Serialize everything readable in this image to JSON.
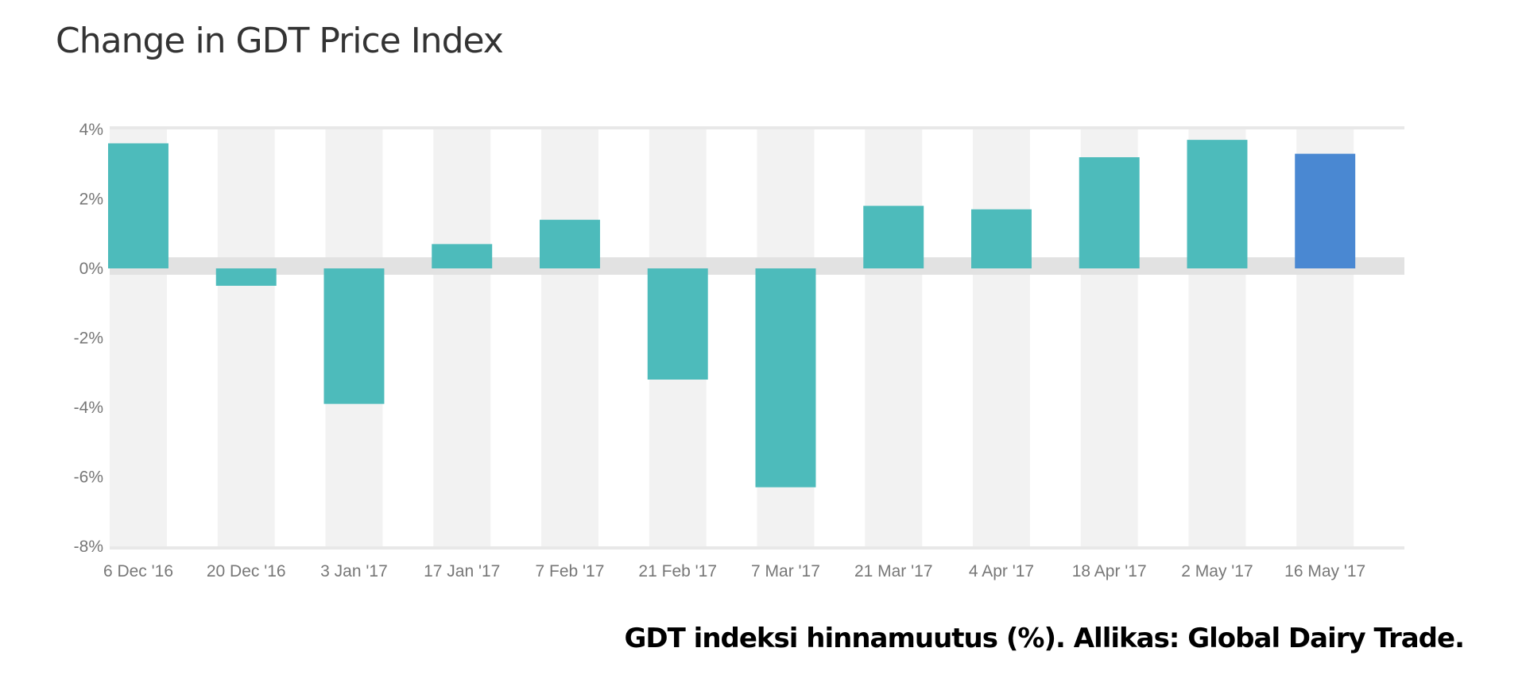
{
  "chart_data": {
    "type": "bar",
    "title": "Change in GDT Price Index",
    "caption": "GDT indeksi hinnamuutus (%). Allikas: Global Dairy Trade.",
    "categories": [
      "6 Dec '16",
      "20 Dec '16",
      "3 Jan '17",
      "17 Jan '17",
      "7 Feb '17",
      "21 Feb '17",
      "7 Mar '17",
      "21 Mar '17",
      "4 Apr '17",
      "18 Apr '17",
      "2 May '17",
      "16 May '17"
    ],
    "values": [
      3.6,
      -0.5,
      -3.9,
      0.7,
      1.4,
      -3.2,
      -6.3,
      1.8,
      1.7,
      3.2,
      3.7,
      3.3
    ],
    "ylim": [
      -8,
      4
    ],
    "yticks": [
      4,
      2,
      0,
      -2,
      -4,
      -6,
      -8
    ],
    "ytick_labels": [
      "4%",
      "2%",
      "0%",
      "-2%",
      "-4%",
      "-6%",
      "-8%"
    ],
    "xlabel": "",
    "ylabel": "",
    "grid": false,
    "colors": {
      "bar": "#4dbbbb",
      "highlight": "#4a88d2",
      "band": "#f2f2f2",
      "zero_band": "#e2e2e2"
    },
    "highlight_index": 11
  }
}
